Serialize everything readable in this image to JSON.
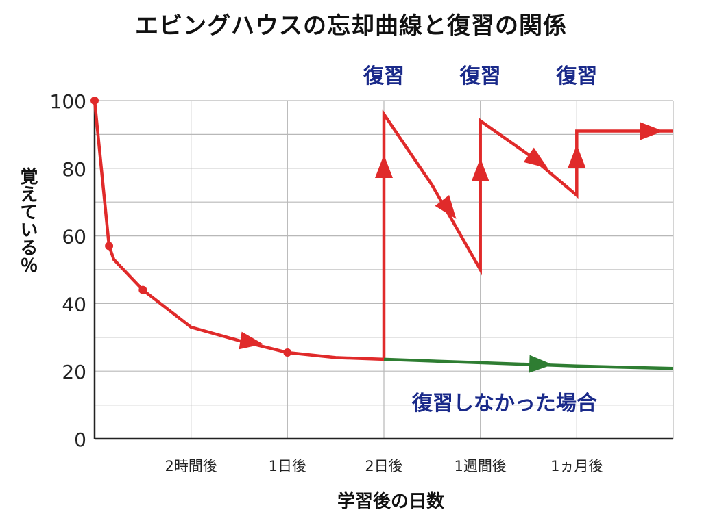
{
  "chart_data": {
    "type": "line",
    "title": "エビングハウスの忘却曲線と復習の関係",
    "xlabel": "学習後の日数",
    "ylabel": "覚えている％",
    "ylim": [
      0,
      100
    ],
    "xlim": [
      0,
      6
    ],
    "yticks": [
      0,
      20,
      40,
      60,
      80,
      100
    ],
    "xtick_labels": [
      {
        "x": 1,
        "label": "2時間後"
      },
      {
        "x": 2,
        "label": "1日後"
      },
      {
        "x": 3,
        "label": "2日後"
      },
      {
        "x": 4,
        "label": "1週間後"
      },
      {
        "x": 5,
        "label": "1ヵ月後"
      }
    ],
    "grid": true,
    "series": [
      {
        "name": "",
        "color": "#e02a2a",
        "points": [
          [
            0,
            100
          ],
          [
            0.15,
            57
          ],
          [
            0.2,
            53
          ],
          [
            0.5,
            44
          ],
          [
            1,
            33
          ],
          [
            1.5,
            29
          ],
          [
            2,
            25.5
          ],
          [
            2.5,
            24
          ],
          [
            3,
            23.5
          ],
          [
            3,
            96
          ],
          [
            3.5,
            75
          ],
          [
            4,
            50
          ],
          [
            4,
            94
          ],
          [
            4.5,
            84
          ],
          [
            5,
            72
          ],
          [
            5,
            91
          ],
          [
            6,
            91
          ]
        ],
        "markers": [
          [
            0,
            100
          ],
          [
            0.15,
            57
          ],
          [
            0.5,
            44
          ],
          [
            2,
            25.5
          ]
        ]
      },
      {
        "name": "",
        "color": "#2e7d32",
        "points": [
          [
            3,
            23.5
          ],
          [
            4,
            22.5
          ],
          [
            5,
            21.5
          ],
          [
            6,
            20.8
          ]
        ]
      }
    ],
    "arrows": [
      {
        "color": "#e02a2a",
        "from": [
          1.3,
          30
        ],
        "to": [
          1.75,
          28
        ],
        "note": "forgetting"
      },
      {
        "color": "#e02a2a",
        "from": [
          3,
          60
        ],
        "to": [
          3,
          84
        ],
        "note": "review 1"
      },
      {
        "color": "#e02a2a",
        "from": [
          3.4,
          78
        ],
        "to": [
          3.75,
          65
        ],
        "note": "decay 1"
      },
      {
        "color": "#e02a2a",
        "from": [
          4,
          60
        ],
        "to": [
          4,
          83
        ],
        "note": "review 2"
      },
      {
        "color": "#e02a2a",
        "from": [
          4.3,
          88
        ],
        "to": [
          4.7,
          80
        ],
        "note": "decay 2"
      },
      {
        "color": "#e02a2a",
        "from": [
          5,
          75
        ],
        "to": [
          5,
          87
        ],
        "note": "review 3"
      },
      {
        "color": "#e02a2a",
        "from": [
          5.35,
          91
        ],
        "to": [
          5.9,
          91
        ],
        "note": "retained"
      },
      {
        "color": "#2e7d32",
        "from": [
          4.25,
          22.4
        ],
        "to": [
          4.75,
          21.9
        ],
        "note": "no review"
      }
    ],
    "annotations": [
      {
        "text": "復習",
        "x": 3,
        "color": "#1a2a8a"
      },
      {
        "text": "復習",
        "x": 4,
        "color": "#1a2a8a"
      },
      {
        "text": "復習",
        "x": 5,
        "color": "#1a2a8a"
      },
      {
        "text": "復習しなかった場合",
        "x": 4.25,
        "y": 10.5,
        "color": "#1a2a8a"
      }
    ]
  }
}
